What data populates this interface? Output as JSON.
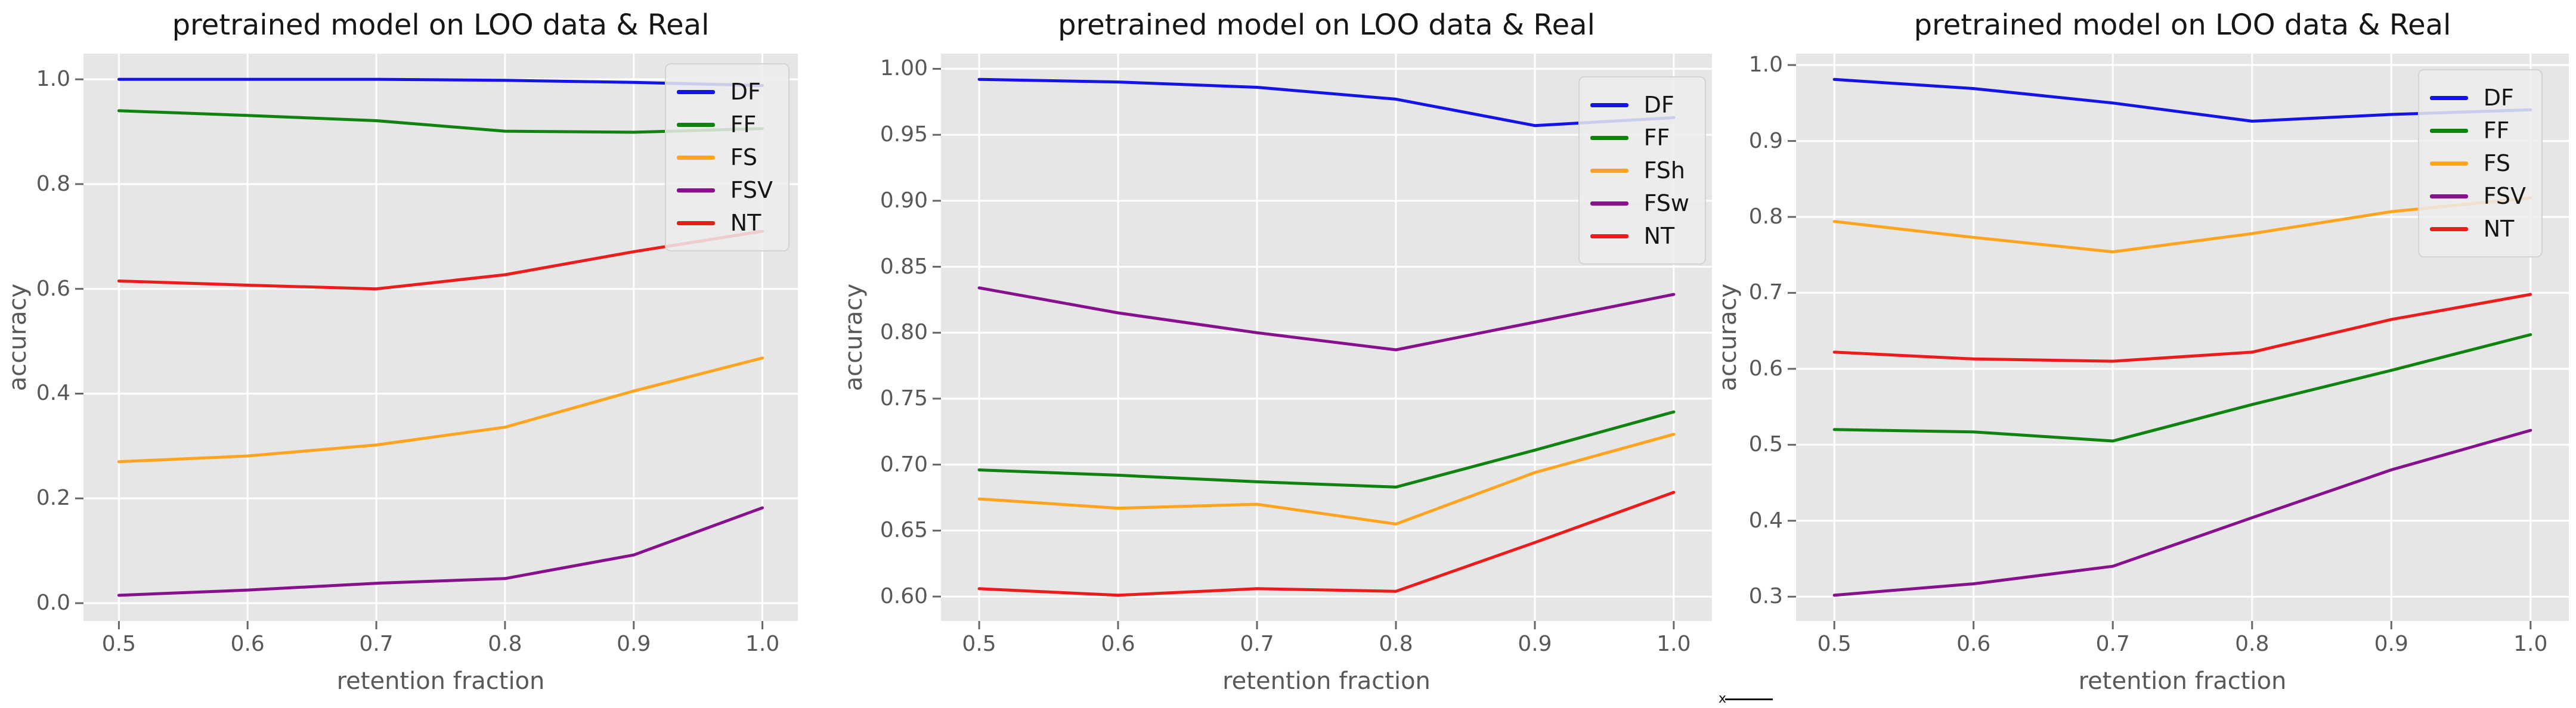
{
  "figure": {
    "plot_bg": "#e6e6e6",
    "grid_color": "#ffffff",
    "tick_color": "#666666",
    "stray_mark": "x"
  },
  "chart_data": [
    {
      "type": "line",
      "title": "pretrained model on LOO data & Real",
      "xlabel": "retention fraction",
      "ylabel": "accuracy",
      "grid": true,
      "legend_position": "upper right",
      "x": [
        0.5,
        0.6,
        0.7,
        0.8,
        0.9,
        1.0
      ],
      "xtick_values": [
        0.5,
        0.6,
        0.7,
        0.8,
        0.9,
        1.0
      ],
      "xtick_labels": [
        "0.5",
        "0.6",
        "0.7",
        "0.8",
        "0.9",
        "1.0"
      ],
      "ytick_values": [
        0.0,
        0.2,
        0.4,
        0.6,
        0.8,
        1.0
      ],
      "ytick_labels": [
        "0.0",
        "0.2",
        "0.4",
        "0.6",
        "0.8",
        "1.0"
      ],
      "xlim": [
        0.4725,
        1.0275
      ],
      "ylim": [
        -0.034,
        1.049
      ],
      "series": [
        {
          "name": "DF",
          "color": "#1414e8",
          "values": [
            1.0,
            1.0,
            1.0,
            0.998,
            0.994,
            0.988
          ]
        },
        {
          "name": "FF",
          "color": "#0f820f",
          "values": [
            0.94,
            0.931,
            0.921,
            0.901,
            0.899,
            0.906
          ]
        },
        {
          "name": "FS",
          "color": "#ffa41f",
          "values": [
            0.27,
            0.281,
            0.302,
            0.336,
            0.405,
            0.468
          ]
        },
        {
          "name": "FSV",
          "color": "#87108c",
          "values": [
            0.015,
            0.025,
            0.038,
            0.047,
            0.092,
            0.182
          ]
        },
        {
          "name": "NT",
          "color": "#ed1c1c",
          "values": [
            0.615,
            0.607,
            0.6,
            0.627,
            0.671,
            0.71
          ]
        }
      ]
    },
    {
      "type": "line",
      "title": "pretrained model on LOO data & Real",
      "xlabel": "retention fraction",
      "ylabel": "accuracy",
      "grid": true,
      "legend_position": "upper right",
      "x": [
        0.5,
        0.6,
        0.7,
        0.8,
        0.9,
        1.0
      ],
      "xtick_values": [
        0.5,
        0.6,
        0.7,
        0.8,
        0.9,
        1.0
      ],
      "xtick_labels": [
        "0.5",
        "0.6",
        "0.7",
        "0.8",
        "0.9",
        "1.0"
      ],
      "ytick_values": [
        0.6,
        0.65,
        0.7,
        0.75,
        0.8,
        0.85,
        0.9,
        0.95,
        1.0
      ],
      "ytick_labels": [
        "0.60",
        "0.65",
        "0.70",
        "0.75",
        "0.80",
        "0.85",
        "0.90",
        "0.95",
        "1.00"
      ],
      "xlim": [
        0.4725,
        1.0275
      ],
      "ylim": [
        0.5815,
        1.0115
      ],
      "series": [
        {
          "name": "DF",
          "color": "#1414e8",
          "values": [
            0.992,
            0.99,
            0.986,
            0.977,
            0.957,
            0.963
          ]
        },
        {
          "name": "FF",
          "color": "#0f820f",
          "values": [
            0.696,
            0.692,
            0.687,
            0.683,
            0.711,
            0.74
          ]
        },
        {
          "name": "FSh",
          "color": "#ffa41f",
          "values": [
            0.674,
            0.667,
            0.67,
            0.655,
            0.694,
            0.723
          ]
        },
        {
          "name": "FSw",
          "color": "#87108c",
          "values": [
            0.834,
            0.815,
            0.8,
            0.787,
            0.808,
            0.829
          ]
        },
        {
          "name": "NT",
          "color": "#ed1c1c",
          "values": [
            0.606,
            0.601,
            0.606,
            0.604,
            0.641,
            0.679
          ]
        }
      ]
    },
    {
      "type": "line",
      "title": "pretrained model on LOO data & Real",
      "xlabel": "retention fraction",
      "ylabel": "accuracy",
      "grid": true,
      "legend_position": "upper right",
      "x": [
        0.5,
        0.6,
        0.7,
        0.8,
        0.9,
        1.0
      ],
      "xtick_values": [
        0.5,
        0.6,
        0.7,
        0.8,
        0.9,
        1.0
      ],
      "xtick_labels": [
        "0.5",
        "0.6",
        "0.7",
        "0.8",
        "0.9",
        "1.0"
      ],
      "ytick_values": [
        0.3,
        0.4,
        0.5,
        0.6,
        0.7,
        0.8,
        0.9,
        1.0
      ],
      "ytick_labels": [
        "0.3",
        "0.4",
        "0.5",
        "0.6",
        "0.7",
        "0.8",
        "0.9",
        "1.0"
      ],
      "xlim": [
        0.4725,
        1.0275
      ],
      "ylim": [
        0.268,
        1.015
      ],
      "series": [
        {
          "name": "DF",
          "color": "#1414e8",
          "values": [
            0.981,
            0.969,
            0.95,
            0.926,
            0.935,
            0.941
          ]
        },
        {
          "name": "FF",
          "color": "#0f820f",
          "values": [
            0.52,
            0.517,
            0.505,
            0.553,
            0.598,
            0.645
          ]
        },
        {
          "name": "FS",
          "color": "#ffa41f",
          "values": [
            0.794,
            0.773,
            0.754,
            0.778,
            0.807,
            0.825
          ]
        },
        {
          "name": "FSV",
          "color": "#87108c",
          "values": [
            0.302,
            0.317,
            0.34,
            0.404,
            0.467,
            0.519
          ]
        },
        {
          "name": "NT",
          "color": "#ed1c1c",
          "values": [
            0.622,
            0.613,
            0.61,
            0.622,
            0.665,
            0.698
          ]
        }
      ]
    }
  ]
}
